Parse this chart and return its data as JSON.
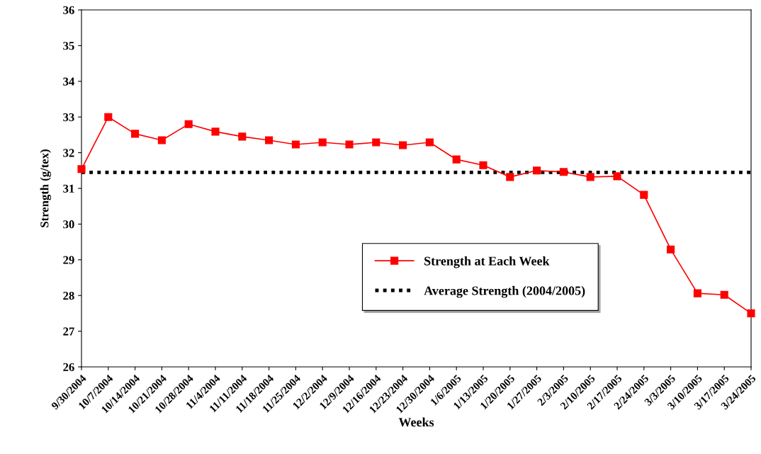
{
  "chart_data": {
    "type": "line",
    "xlabel": "Weeks",
    "ylabel": "Strength (g/tex)",
    "categories": [
      "9/30/2004",
      "10/7/2004",
      "10/14/2004",
      "10/21/2004",
      "10/28/2004",
      "11/4/2004",
      "11/11/2004",
      "11/18/2004",
      "11/25/2004",
      "12/2/2004",
      "12/9/2004",
      "12/16/2004",
      "12/23/2004",
      "12/30/2004",
      "1/6/2005",
      "1/13/2005",
      "1/20/2005",
      "1/27/2005",
      "2/3/2005",
      "2/10/2005",
      "2/17/2005",
      "2/24/2005",
      "3/3/2005",
      "3/10/2005",
      "3/17/2005",
      "3/24/2005"
    ],
    "series": [
      {
        "name": "Strength at Each Week",
        "color": "#ff0000",
        "marker": "square",
        "line_style": "solid",
        "values": [
          31.54,
          33.0,
          32.53,
          32.35,
          32.8,
          32.59,
          32.45,
          32.35,
          32.23,
          32.29,
          32.23,
          32.29,
          32.21,
          32.29,
          31.81,
          31.65,
          31.32,
          31.5,
          31.46,
          31.32,
          31.34,
          30.82,
          29.29,
          28.06,
          28.02,
          27.5
        ]
      }
    ],
    "ref_lines": [
      {
        "axis": "y",
        "value": 31.45,
        "label": "Average Strength (2004/2005)",
        "color": "#000000",
        "line_style": "dotted"
      }
    ],
    "ylim": [
      26,
      36
    ],
    "yticks": [
      26,
      27,
      28,
      29,
      30,
      31,
      32,
      33,
      34,
      35,
      36
    ],
    "grid": false,
    "legend": "lower right"
  }
}
